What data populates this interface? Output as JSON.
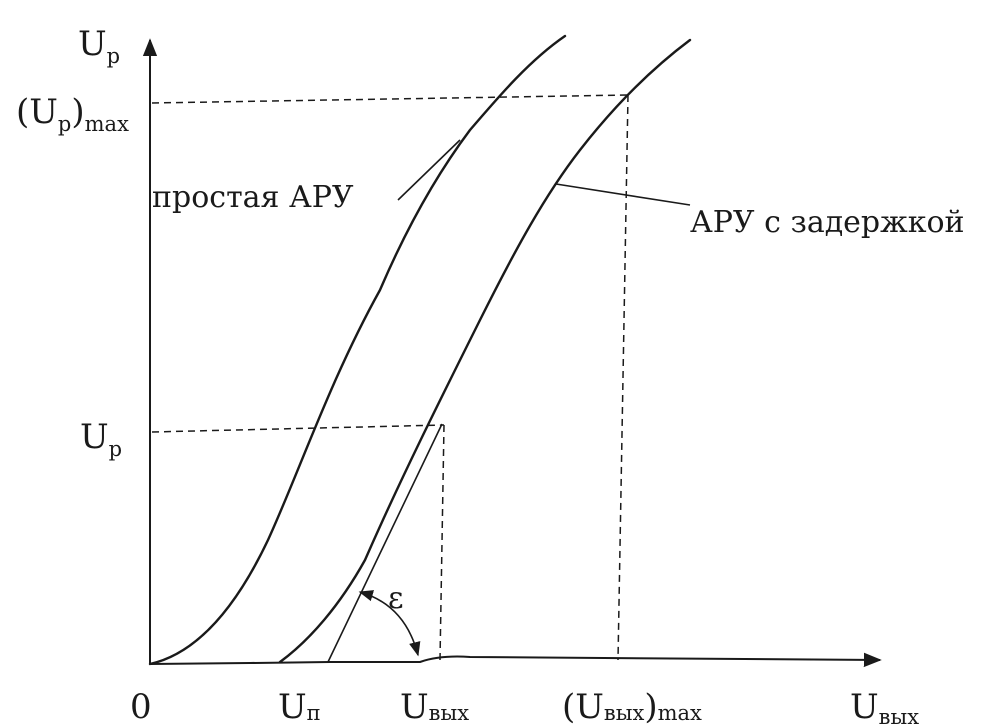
{
  "labels": {
    "y_axis_main": "U",
    "y_axis_sub": "p",
    "y_max_open": "(U",
    "y_max_sub": "p",
    "y_max_close": ")",
    "y_max_suffix": "max",
    "y_level_main": "U",
    "y_level_sub": "p",
    "origin": "0",
    "x_un_main": "U",
    "x_un_sub": "п",
    "x_out_main": "U",
    "x_out_sub": "вых",
    "x_outmax_open": "(U",
    "x_outmax_sub": "вых",
    "x_outmax_close": ")",
    "x_outmax_suffix": "max",
    "x_axis_main": "U",
    "x_axis_sub": "вых",
    "curve_simple": "простая АРУ",
    "curve_delayed": "АРУ с задержкой",
    "angle": "ε"
  }
}
